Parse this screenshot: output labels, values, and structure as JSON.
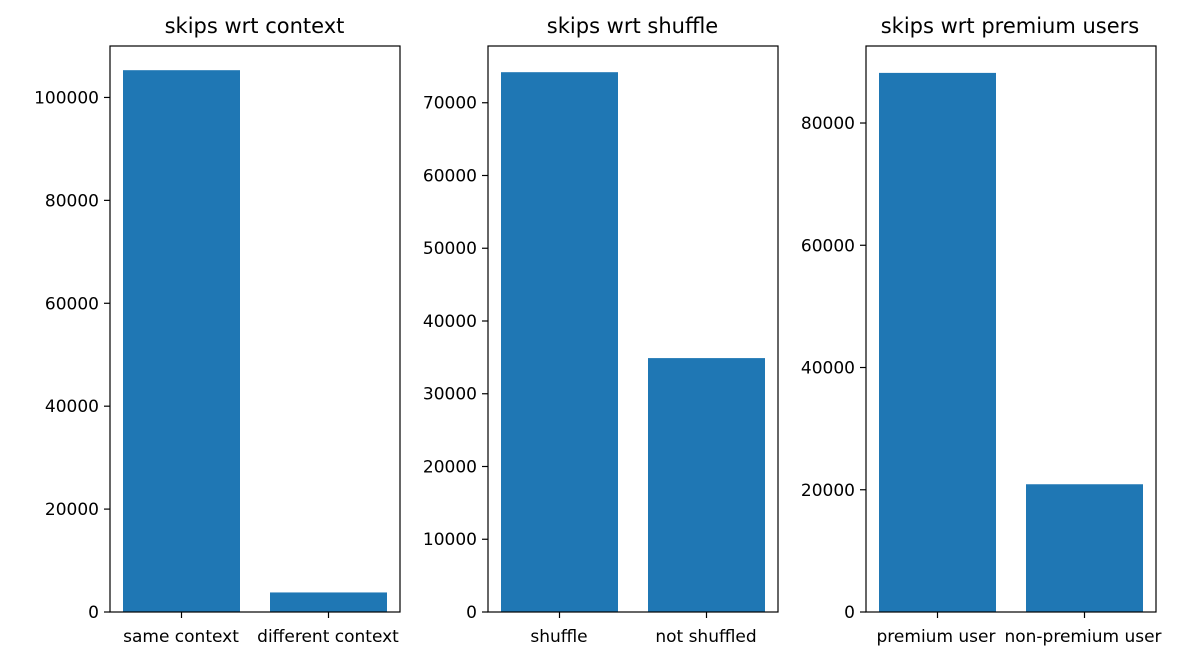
{
  "chart_data": [
    {
      "type": "bar",
      "title": "skips wrt context",
      "xlabel": "",
      "ylabel": "",
      "categories": [
        "same context",
        "different context"
      ],
      "values": [
        105300,
        3800
      ],
      "ylim": [
        0,
        110000
      ],
      "yticks": [
        0,
        20000,
        40000,
        60000,
        80000,
        100000
      ],
      "ytick_labels": [
        "0",
        "20000",
        "40000",
        "60000",
        "80000",
        "100000"
      ],
      "bar_color": "#1f77b4",
      "grid": false
    },
    {
      "type": "bar",
      "title": "skips wrt shuffle",
      "xlabel": "",
      "ylabel": "",
      "categories": [
        "shuffle",
        "not shuffled"
      ],
      "values": [
        74200,
        34900
      ],
      "ylim": [
        0,
        77800
      ],
      "yticks": [
        0,
        10000,
        20000,
        30000,
        40000,
        50000,
        60000,
        70000
      ],
      "ytick_labels": [
        "0",
        "10000",
        "20000",
        "30000",
        "40000",
        "50000",
        "60000",
        "70000"
      ],
      "bar_color": "#1f77b4",
      "grid": false
    },
    {
      "type": "bar",
      "title": "skips wrt premium users",
      "xlabel": "",
      "ylabel": "",
      "categories": [
        "premium user",
        "non-premium user"
      ],
      "values": [
        88200,
        20900
      ],
      "ylim": [
        0,
        92600
      ],
      "yticks": [
        0,
        20000,
        40000,
        60000,
        80000
      ],
      "ytick_labels": [
        "0",
        "20000",
        "40000",
        "60000",
        "80000"
      ],
      "bar_color": "#1f77b4",
      "grid": false
    }
  ]
}
